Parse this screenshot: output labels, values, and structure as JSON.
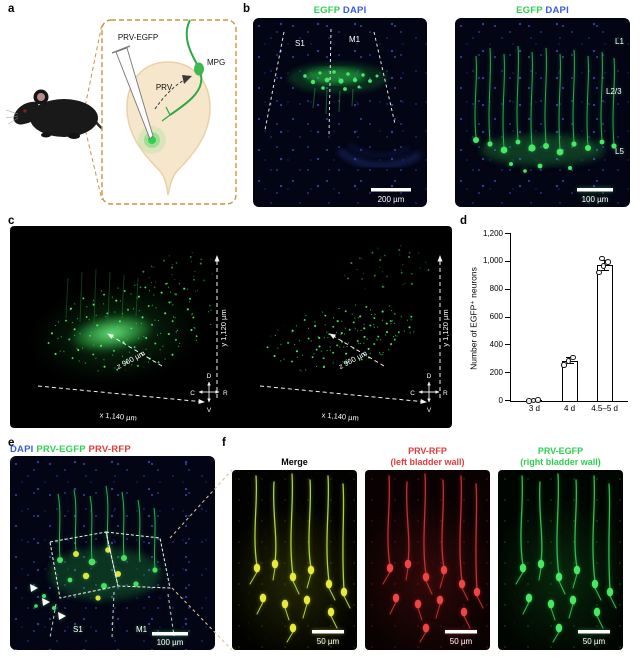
{
  "figure": {
    "panel_labels": {
      "a": "a",
      "b": "b",
      "c": "c",
      "d": "d",
      "e": "e",
      "f": "f"
    }
  },
  "panels": {
    "a": {
      "pipette_label": "PRV-EGFP",
      "prv_label": "PRV",
      "mpg_label": "MPG"
    },
    "b": {
      "header_egfp": "EGFP",
      "header_dapi": "DAPI",
      "left": {
        "region_1": "S1",
        "region_2": "M1",
        "scale_bar": "200 µm"
      },
      "right": {
        "layer_1": "L1",
        "layer_2": "L2/3",
        "layer_3": "L5",
        "scale_bar": "100 µm"
      }
    },
    "c": {
      "axis_y": "y  1,120 µm",
      "axis_z": "z  960 µm",
      "axis_x": "x  1,140 µm",
      "compass": {
        "d": "D",
        "v": "V",
        "c": "C",
        "r": "R"
      }
    },
    "e": {
      "header_dapi": "DAPI",
      "header_egfp": "PRV-EGFP",
      "header_rfp": "PRV-RFP",
      "region_1": "S1",
      "region_2": "M1",
      "scale_bar": "100 µm"
    },
    "f": {
      "merge": {
        "title": "Merge",
        "scale_bar": "50 µm"
      },
      "rfp": {
        "title": "PRV-RFP",
        "subtitle": "(left bladder wall)",
        "scale_bar": "50 µm"
      },
      "egfp": {
        "title": "PRV-EGFP",
        "subtitle": "(right bladder wall)",
        "scale_bar": "50 µm"
      }
    }
  },
  "chart_data": {
    "type": "bar",
    "title": "",
    "xlabel": "",
    "ylabel": "Number of EGFP⁺ neurons",
    "categories": [
      "3 d",
      "4 d",
      "4.5–5 d"
    ],
    "values": [
      5,
      290,
      975
    ],
    "errors": [
      0,
      25,
      40
    ],
    "points": [
      [
        2,
        5,
        8
      ],
      [
        262,
        290,
        314
      ],
      [
        925,
        972,
        1002,
        1025
      ]
    ],
    "ylim": [
      0,
      1200
    ],
    "yticks": [
      "0",
      "200",
      "400",
      "600",
      "800",
      "1,000",
      "1,200"
    ],
    "grid": false,
    "legend": null
  }
}
